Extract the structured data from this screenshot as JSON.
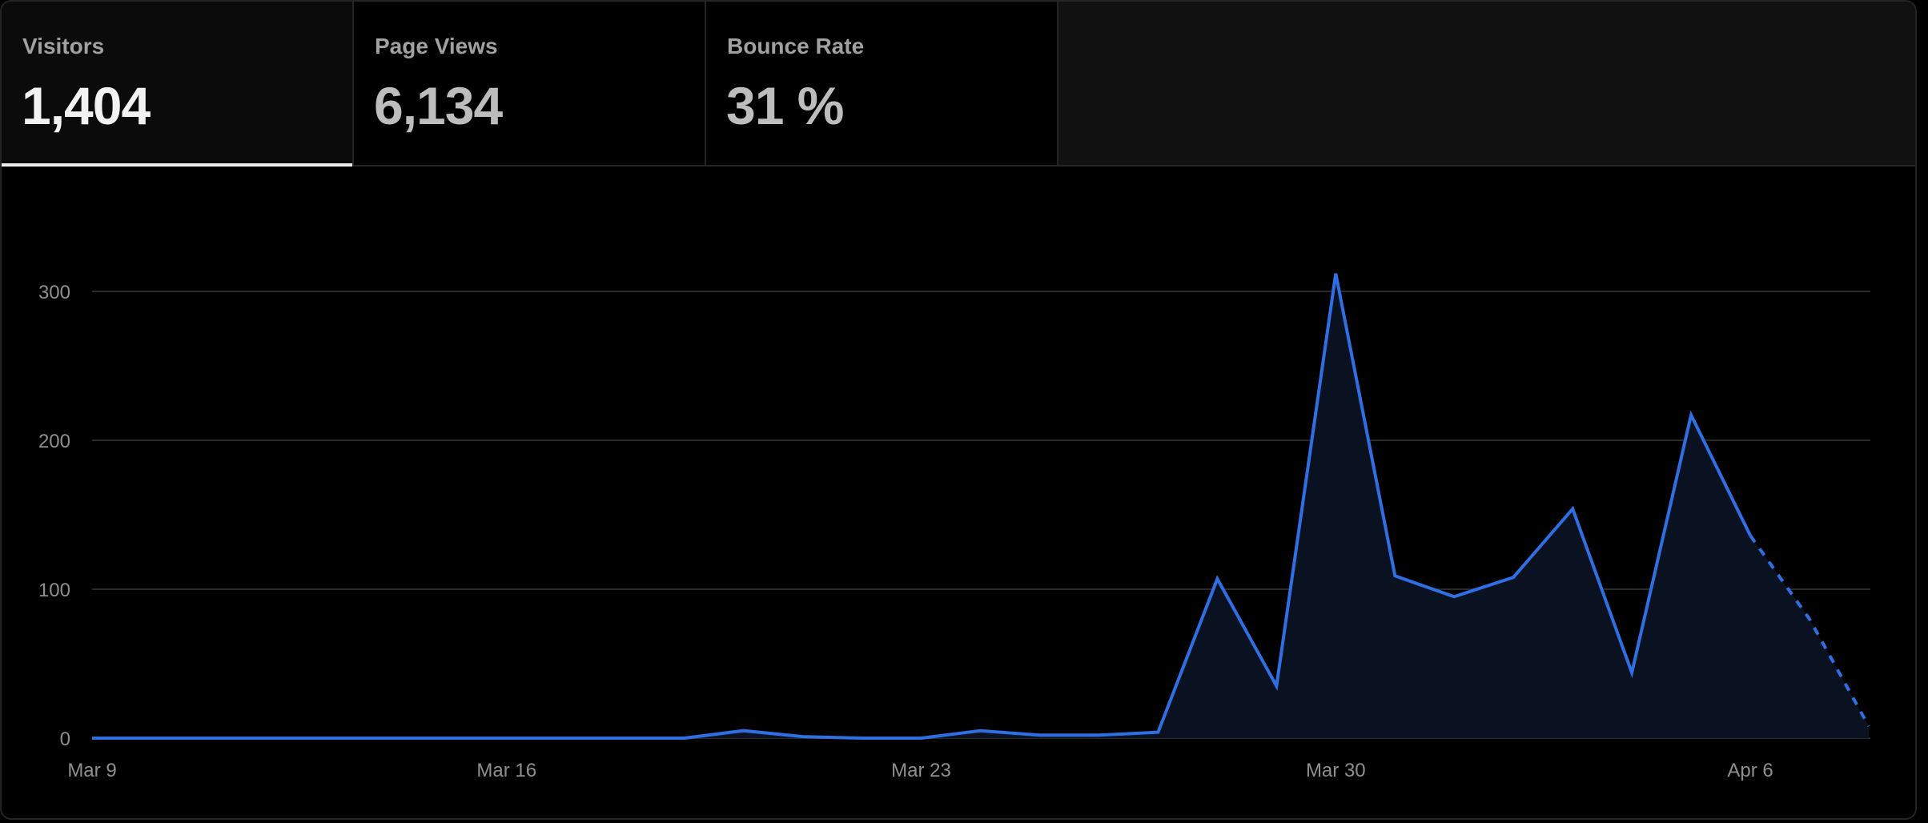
{
  "tabs": [
    {
      "label": "Visitors",
      "value": "1,404",
      "active": true
    },
    {
      "label": "Page Views",
      "value": "6,134",
      "active": false
    },
    {
      "label": "Bounce Rate",
      "value": "31 %",
      "active": false
    }
  ],
  "colors": {
    "line": "#2f6fe4",
    "area": "#0a1120",
    "grid": "#2a2a2a",
    "tick": "#8f8f8f"
  },
  "chart_data": {
    "type": "area",
    "title": "",
    "xlabel": "",
    "ylabel": "",
    "ylim": [
      0,
      350
    ],
    "yticks": [
      0,
      100,
      200,
      300
    ],
    "yticks_labels": [
      "0",
      "100",
      "200",
      "300"
    ],
    "x_tick_labels": [
      "Mar 9",
      "Mar 16",
      "Mar 23",
      "Mar 30",
      "Apr 6"
    ],
    "x_tick_indices": [
      0,
      7,
      14,
      21,
      28
    ],
    "grid": true,
    "series": [
      {
        "dates": [
          "Mar 9",
          "Mar 10",
          "Mar 11",
          "Mar 12",
          "Mar 13",
          "Mar 14",
          "Mar 15",
          "Mar 16",
          "Mar 17",
          "Mar 18",
          "Mar 19",
          "Mar 20",
          "Mar 21",
          "Mar 22",
          "Mar 23",
          "Mar 24",
          "Mar 25",
          "Mar 26",
          "Mar 27",
          "Mar 28",
          "Mar 29",
          "Mar 30",
          "Mar 31",
          "Apr 1",
          "Apr 2",
          "Apr 3",
          "Apr 4",
          "Apr 5",
          "Apr 6",
          "Apr 7",
          "Apr 8"
        ],
        "values": [
          0,
          0,
          0,
          0,
          0,
          0,
          0,
          0,
          0,
          0,
          0,
          5,
          1,
          0,
          0,
          5,
          2,
          2,
          4,
          107,
          35,
          312,
          109,
          95,
          108,
          154,
          44,
          217,
          136,
          80,
          8
        ],
        "incomplete_from_index": 29
      }
    ]
  }
}
